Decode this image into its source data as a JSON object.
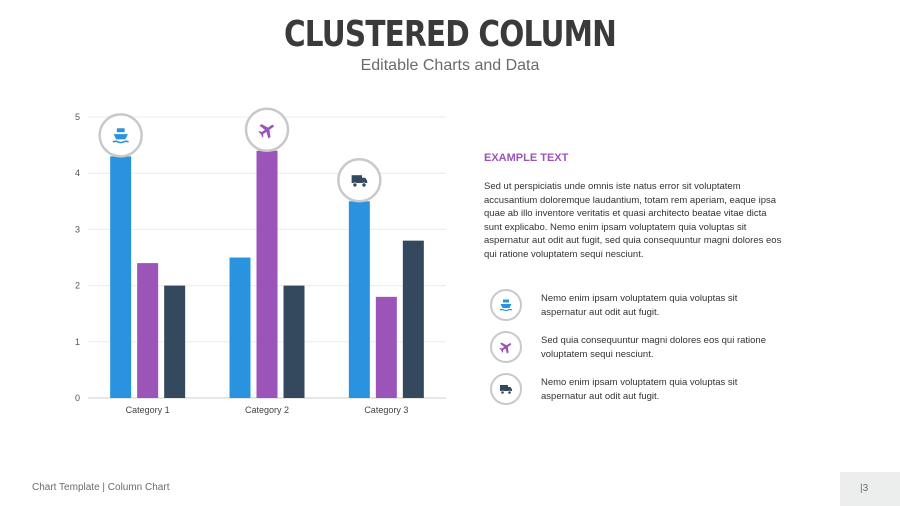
{
  "header": {
    "title": "CLUSTERED COLUMN",
    "subtitle": "Editable Charts and Data"
  },
  "chart_data": {
    "type": "bar",
    "categories": [
      "Category 1",
      "Category 2",
      "Category 3"
    ],
    "series": [
      {
        "values": [
          4.3,
          2.5,
          3.5
        ],
        "color": "#2a93e0"
      },
      {
        "values": [
          2.4,
          4.4,
          1.8
        ],
        "color": "#9b54b7"
      },
      {
        "values": [
          2.0,
          2.0,
          2.8
        ],
        "color": "#34495e"
      }
    ],
    "ylim": [
      0,
      5
    ],
    "yticks": [
      "0",
      "1",
      "2",
      "3",
      "4",
      "5"
    ],
    "grid": true,
    "icons": [
      "ship-icon",
      "plane-icon",
      "truck-icon"
    ]
  },
  "side": {
    "heading": "EXAMPLE TEXT",
    "body": "Sed ut perspiciatis unde omnis iste natus error sit voluptatem accusantium doloremque laudantium, totam rem aperiam, eaque ipsa quae ab illo inventore veritatis et quasi architecto beatae vitae dicta sunt explicabo. Nemo enim ipsam voluptatem quia voluptas sit aspernatur aut odit aut fugit, sed quia consequuntur magni dolores eos qui ratione voluptatem sequi nesciunt.",
    "items": [
      {
        "icon": "ship-icon",
        "color": "#2a93e0",
        "text": "Nemo enim ipsam voluptatem quia voluptas sit aspernatur aut odit aut fugit."
      },
      {
        "icon": "plane-icon",
        "color": "#9b54b7",
        "text": "Sed quia consequuntur magni dolores eos qui ratione voluptatem sequi nesciunt."
      },
      {
        "icon": "truck-icon",
        "color": "#34495e",
        "text": "Nemo enim ipsam voluptatem quia voluptas sit aspernatur aut odit aut fugit."
      }
    ]
  },
  "footer": {
    "left": "Chart Template | Column Chart",
    "page": "|3"
  }
}
